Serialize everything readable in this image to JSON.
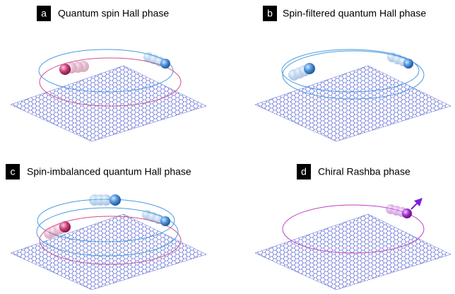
{
  "panels": [
    {
      "letter": "a",
      "title": "Quantum spin Hall phase"
    },
    {
      "letter": "b",
      "title": "Spin-filtered quantum Hall phase"
    },
    {
      "letter": "c",
      "title": "Spin-imbalanced quantum Hall phase"
    },
    {
      "letter": "d",
      "title": "Chiral Rashba phase"
    }
  ]
}
